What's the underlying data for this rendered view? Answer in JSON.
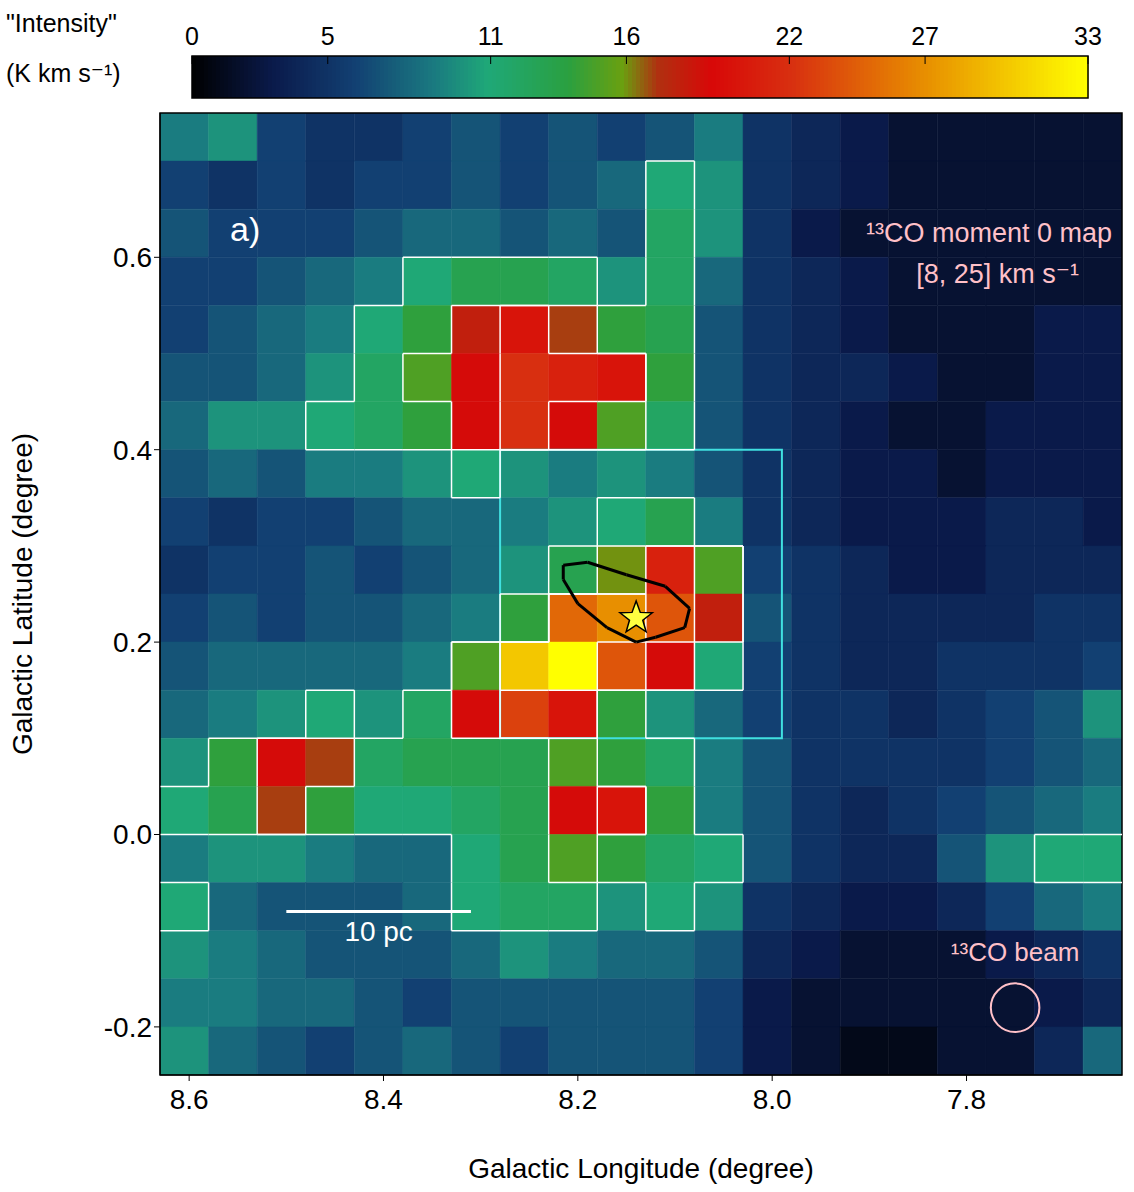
{
  "chart_data": {
    "type": "heatmap",
    "title": "¹³CO moment 0 map",
    "subtitle": "[8, 25] km s⁻¹",
    "x_label": "Galactic Longitude (degree)",
    "y_label": "Galactic Latitude (degree)",
    "xlim": [
      8.63,
      7.64
    ],
    "ylim": [
      -0.25,
      0.75
    ],
    "xticks": [
      8.6,
      8.4,
      8.2,
      {
        "value": 8,
        "label": "8.0"
      },
      7.8
    ],
    "yticks": [
      -0.2,
      {
        "value": 0,
        "label": "0.0"
      },
      0.2,
      0.4,
      0.6
    ],
    "cells": {
      "x": [
        8.605,
        8.555,
        8.505,
        8.455,
        8.405,
        8.355,
        8.305,
        8.255,
        8.205,
        8.155,
        8.105,
        8.055,
        8.005,
        7.955,
        7.905,
        7.855,
        7.805,
        7.755,
        7.705,
        7.655
      ],
      "y": [
        0.725,
        0.675,
        0.625,
        0.575,
        0.525,
        0.475,
        0.425,
        0.375,
        0.325,
        0.275,
        0.225,
        0.175,
        0.125,
        0.075,
        0.025,
        -0.025,
        -0.075,
        -0.125,
        -0.175,
        -0.225
      ],
      "values": [
        [
          9,
          10,
          6,
          5,
          5,
          6,
          7,
          6,
          7,
          6,
          7,
          9,
          5,
          4,
          3,
          2,
          2,
          2,
          2,
          2
        ],
        [
          6,
          5,
          6,
          5,
          6,
          6,
          7,
          6,
          7,
          8,
          11,
          10,
          5,
          4,
          3,
          2,
          2,
          2,
          2,
          2
        ],
        [
          7,
          6,
          6,
          6,
          7,
          8,
          8,
          7,
          8,
          7,
          12,
          10,
          5,
          3,
          2,
          2,
          2,
          2,
          2,
          2
        ],
        [
          6,
          6,
          7,
          8,
          9,
          11,
          13,
          13,
          12,
          10,
          12,
          8,
          5,
          4,
          3,
          2,
          2,
          2,
          2,
          2
        ],
        [
          6,
          7,
          8,
          9,
          11,
          14,
          18,
          20,
          17,
          14,
          13,
          7,
          5,
          4,
          3,
          2,
          2,
          2,
          3,
          3
        ],
        [
          7,
          7,
          8,
          10,
          12,
          15,
          19,
          22,
          21,
          20,
          14,
          7,
          5,
          4,
          4,
          3,
          2,
          2,
          3,
          3
        ],
        [
          8,
          10,
          10,
          11,
          12,
          14,
          19,
          22,
          19,
          15,
          12,
          7,
          5,
          4,
          3,
          2,
          2,
          3,
          3,
          3
        ],
        [
          7,
          8,
          7,
          9,
          9,
          10,
          11,
          10,
          9,
          10,
          9,
          7,
          5,
          4,
          3,
          3,
          2,
          3,
          3,
          3
        ],
        [
          6,
          5,
          6,
          6,
          7,
          8,
          8,
          9,
          10,
          11,
          13,
          9,
          5,
          4,
          3,
          3,
          3,
          4,
          4,
          3
        ],
        [
          5,
          6,
          6,
          7,
          6,
          7,
          8,
          10,
          13,
          16,
          21,
          15,
          6,
          5,
          4,
          3,
          3,
          4,
          4,
          4
        ],
        [
          6,
          7,
          6,
          7,
          7,
          8,
          9,
          14,
          25,
          27,
          24,
          18,
          7,
          5,
          4,
          4,
          4,
          4,
          5,
          5
        ],
        [
          7,
          8,
          8,
          8,
          8,
          9,
          15,
          30,
          33,
          24,
          19,
          11,
          6,
          5,
          4,
          4,
          5,
          5,
          5,
          6
        ],
        [
          8,
          9,
          10,
          11,
          10,
          12,
          19,
          23,
          20,
          14,
          10,
          8,
          6,
          5,
          5,
          4,
          5,
          6,
          7,
          10
        ],
        [
          10,
          14,
          19,
          17,
          12,
          13,
          13,
          13,
          15,
          14,
          12,
          9,
          7,
          5,
          5,
          5,
          5,
          6,
          7,
          8
        ],
        [
          11,
          13,
          17,
          14,
          11,
          11,
          12,
          13,
          19,
          20,
          14,
          9,
          7,
          5,
          4,
          5,
          6,
          7,
          8,
          9
        ],
        [
          9,
          10,
          10,
          9,
          8,
          8,
          11,
          13,
          15,
          14,
          12,
          11,
          7,
          5,
          4,
          4,
          7,
          10,
          11,
          11
        ],
        [
          11,
          8,
          7,
          7,
          7,
          8,
          11,
          12,
          12,
          10,
          11,
          10,
          5,
          4,
          3,
          3,
          4,
          6,
          8,
          9
        ],
        [
          10,
          9,
          8,
          7,
          7,
          7,
          8,
          10,
          9,
          8,
          8,
          7,
          4,
          3,
          2,
          2,
          2,
          3,
          4,
          5
        ],
        [
          9,
          9,
          8,
          8,
          7,
          6,
          7,
          7,
          7,
          7,
          7,
          6,
          3,
          2,
          2,
          2,
          2,
          2,
          3,
          4
        ],
        [
          10,
          8,
          7,
          6,
          7,
          8,
          7,
          6,
          7,
          7,
          7,
          6,
          3,
          2,
          1,
          1,
          2,
          2,
          4,
          8
        ]
      ]
    },
    "colorbar": {
      "title": "\"Intensity\"",
      "unit": "(K km s⁻¹)",
      "range": [
        0,
        33
      ],
      "ticks": [
        0,
        5,
        11,
        16,
        22,
        27,
        33
      ]
    },
    "contour_levels": [
      11,
      15,
      20,
      25
    ],
    "annotations": {
      "panel": "a)",
      "box": {
        "x": [
          8.28,
          7.99
        ],
        "y": [
          0.1,
          0.4
        ]
      },
      "star": {
        "x": 8.14,
        "y": 0.225
      },
      "region_contour": {
        "x": [
          8.215,
          8.19,
          8.15,
          8.11,
          8.085,
          8.09,
          8.12,
          8.14,
          8.17,
          8.2,
          8.215
        ],
        "y": [
          0.28,
          0.283,
          0.27,
          0.258,
          0.235,
          0.215,
          0.205,
          0.2,
          0.215,
          0.24,
          0.265
        ]
      },
      "scale_bar": {
        "label": "10 pc",
        "x": [
          8.5,
          8.31
        ],
        "y": -0.08
      },
      "beam": {
        "label": "¹³CO beam",
        "x": 7.75,
        "y": -0.18,
        "diameter": 0.05
      }
    }
  }
}
